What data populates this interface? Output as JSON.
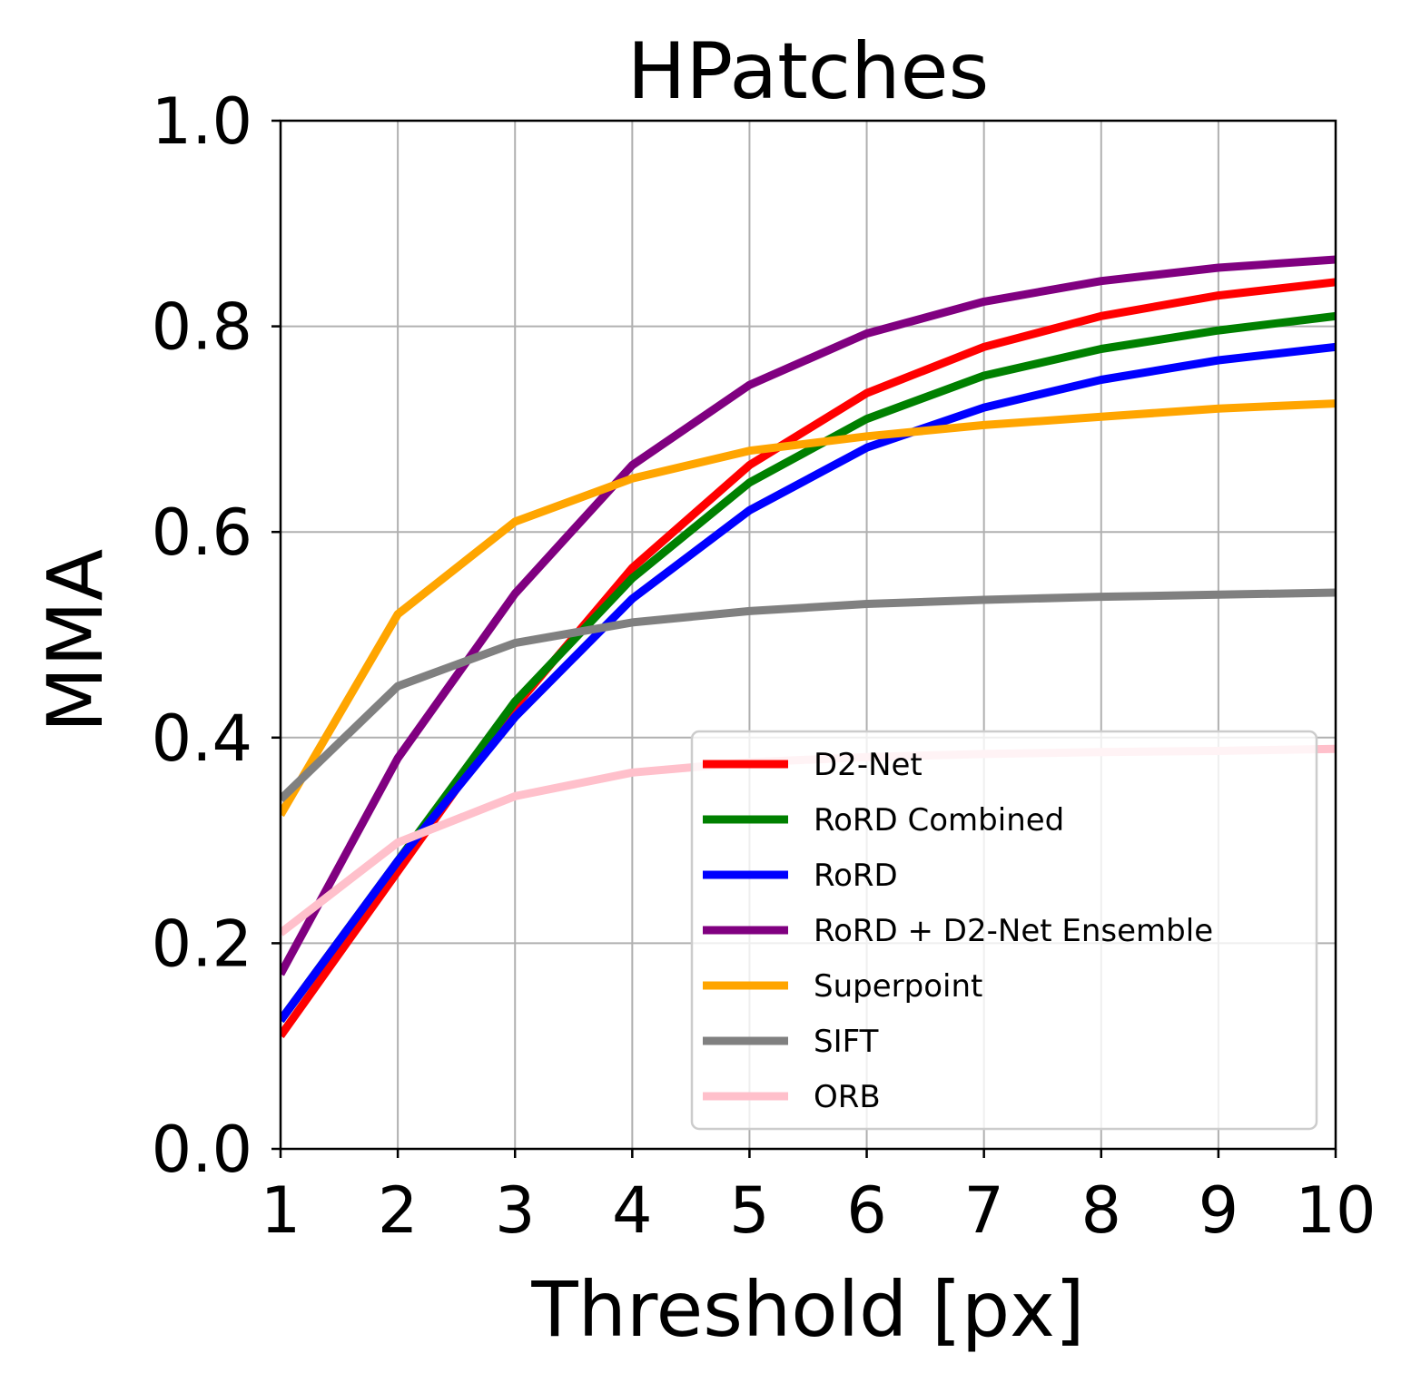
{
  "chart_data": {
    "type": "line",
    "title": "HPatches",
    "xlabel": "Threshold [px]",
    "ylabel": "MMA",
    "xlim": [
      1,
      10
    ],
    "ylim": [
      0,
      1
    ],
    "x_ticks": [
      "1",
      "2",
      "3",
      "4",
      "5",
      "6",
      "7",
      "8",
      "9",
      "10"
    ],
    "y_ticks": [
      "0.0",
      "0.2",
      "0.4",
      "0.6",
      "0.8",
      "1.0"
    ],
    "grid": true,
    "legend_position": "lower-right",
    "x": [
      1,
      2,
      3,
      4,
      5,
      6,
      7,
      8,
      9,
      10
    ],
    "series": [
      {
        "name": "D2-Net",
        "color": "#ff0000",
        "values": [
          0.11,
          0.27,
          0.43,
          0.565,
          0.665,
          0.735,
          0.78,
          0.81,
          0.83,
          0.843
        ]
      },
      {
        "name": "RoRD Combined",
        "color": "#008000",
        "values": [
          0.125,
          0.28,
          0.435,
          0.555,
          0.648,
          0.71,
          0.752,
          0.778,
          0.796,
          0.81
        ]
      },
      {
        "name": "RoRD",
        "color": "#0000ff",
        "values": [
          0.125,
          0.28,
          0.42,
          0.535,
          0.621,
          0.682,
          0.721,
          0.748,
          0.767,
          0.78
        ]
      },
      {
        "name": "RoRD + D2-Net Ensemble",
        "color": "#800080",
        "values": [
          0.17,
          0.38,
          0.54,
          0.665,
          0.743,
          0.793,
          0.824,
          0.844,
          0.857,
          0.865
        ]
      },
      {
        "name": "Superpoint",
        "color": "#ffa500",
        "values": [
          0.325,
          0.52,
          0.61,
          0.652,
          0.679,
          0.693,
          0.704,
          0.712,
          0.72,
          0.725
        ]
      },
      {
        "name": "SIFT",
        "color": "#808080",
        "values": [
          0.34,
          0.45,
          0.492,
          0.512,
          0.523,
          0.53,
          0.534,
          0.537,
          0.539,
          0.541
        ]
      },
      {
        "name": "ORB",
        "color": "#ffc0cb",
        "values": [
          0.21,
          0.298,
          0.343,
          0.366,
          0.376,
          0.381,
          0.384,
          0.386,
          0.387,
          0.389
        ]
      }
    ]
  }
}
